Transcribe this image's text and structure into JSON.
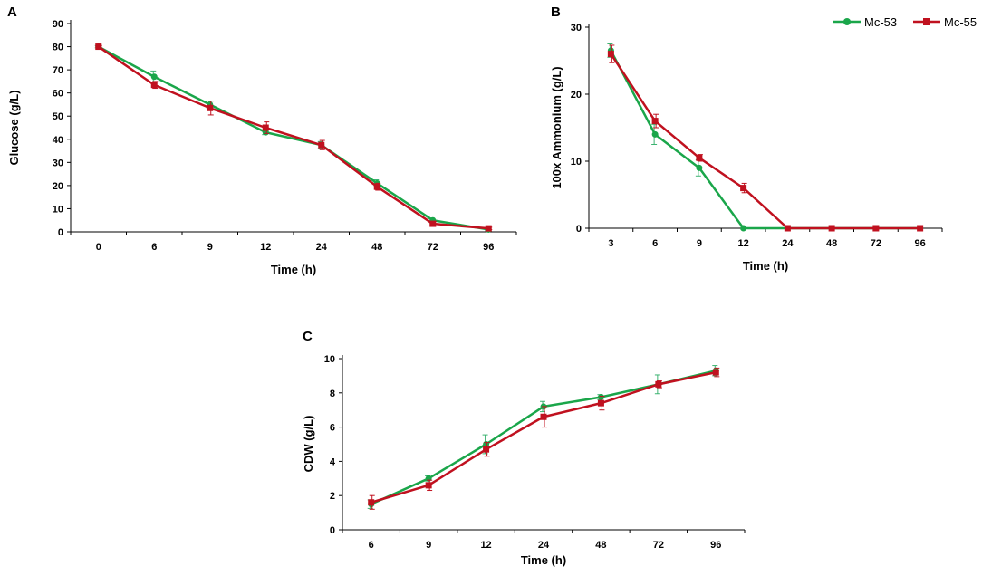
{
  "colors": {
    "mc53": "#1aa64a",
    "mc55": "#c0111f",
    "errorbar_mc53": "#3cb371",
    "errorbar_mc55": "#c0111f",
    "axis": "#000000"
  },
  "legend": [
    {
      "label": "Mc-53",
      "color": "#1aa64a",
      "marker": "circle"
    },
    {
      "label": "Mc-55",
      "color": "#c0111f",
      "marker": "square"
    }
  ],
  "chart_data": [
    {
      "panel": "A",
      "type": "line",
      "categories": [
        "0",
        "6",
        "9",
        "12",
        "24",
        "48",
        "72",
        "96"
      ],
      "xlabel": "Time (h)",
      "ylabel": "Glucose (g/L)",
      "ylim": [
        0,
        90
      ],
      "yticks": [
        0,
        10,
        20,
        30,
        40,
        50,
        60,
        70,
        80,
        90
      ],
      "series": [
        {
          "name": "Mc-53",
          "values": [
            80,
            67,
            55,
            43,
            37.5,
            21,
            5,
            1
          ],
          "errors": [
            0.5,
            2.5,
            1.5,
            1,
            1.5,
            1.5,
            1,
            0.5
          ]
        },
        {
          "name": "Mc-55",
          "values": [
            80,
            63.5,
            53.5,
            45,
            37.5,
            19.5,
            3.5,
            1.5
          ],
          "errors": [
            0.5,
            1.5,
            3,
            2.5,
            2,
            1.5,
            1,
            0.5
          ]
        }
      ]
    },
    {
      "panel": "B",
      "type": "line",
      "categories": [
        "3",
        "6",
        "9",
        "12",
        "24",
        "48",
        "72",
        "96"
      ],
      "xlabel": "Time (h)",
      "ylabel": "100x Ammonium (g/L)",
      "ylim": [
        0,
        30
      ],
      "yticks": [
        0,
        10,
        20,
        30
      ],
      "series": [
        {
          "name": "Mc-53",
          "values": [
            26.5,
            14,
            9,
            0,
            0,
            0,
            0,
            0
          ],
          "errors": [
            1,
            1.5,
            1.2,
            0,
            0,
            0,
            0,
            0
          ]
        },
        {
          "name": "Mc-55",
          "values": [
            26,
            16,
            10.5,
            6,
            0,
            0,
            0,
            0
          ],
          "errors": [
            1.3,
            1,
            0.5,
            0.7,
            0,
            0,
            0,
            0
          ]
        }
      ]
    },
    {
      "panel": "C",
      "type": "line",
      "categories": [
        "6",
        "9",
        "12",
        "24",
        "48",
        "72",
        "96"
      ],
      "xlabel": "Time (h)",
      "ylabel": "CDW (g/L)",
      "ylim": [
        0,
        10
      ],
      "yticks": [
        0,
        2,
        4,
        6,
        8,
        10
      ],
      "series": [
        {
          "name": "Mc-53",
          "values": [
            1.5,
            3,
            5,
            7.2,
            7.75,
            8.5,
            9.3
          ],
          "errors": [
            0.25,
            0.15,
            0.55,
            0.3,
            0.15,
            0.55,
            0.3
          ]
        },
        {
          "name": "Mc-55",
          "values": [
            1.6,
            2.6,
            4.7,
            6.6,
            7.4,
            8.5,
            9.2
          ],
          "errors": [
            0.4,
            0.3,
            0.4,
            0.6,
            0.4,
            0.2,
            0.25
          ]
        }
      ]
    }
  ]
}
